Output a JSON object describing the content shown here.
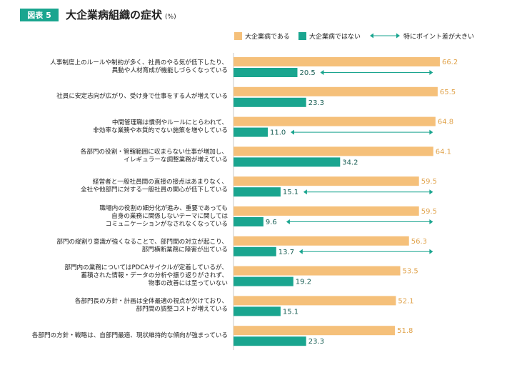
{
  "figure": {
    "badge": "図表 5",
    "title": "大企業病組織の症状",
    "unit": "(%)"
  },
  "legend": {
    "series_a": "大企業病である",
    "series_b": "大企業病ではない",
    "gap_label": "特にポイント差が大きい"
  },
  "colors": {
    "series_a": "#f5c07a",
    "series_b": "#1aa58f",
    "badge": "#1aa58f",
    "arrow": "#1aa58f"
  },
  "chart_data": {
    "type": "bar",
    "orientation": "horizontal",
    "unit": "%",
    "xlim": [
      0,
      70
    ],
    "grid": false,
    "legend_position": "top-right",
    "categories": [
      "人事制度上のルールや制約が多く、社員のやる気が低下したり、\n異動や人材育成が機能しづらくなっている",
      "社員に安定志向が広がり、受け身で仕事をする人が増えている",
      "中間管理職は慣例やルールにとらわれて、\n非効率な業務や本質的でない施策を増やしている",
      "各部門の役割・管轄範囲に収まらない仕事が増加し、\nイレギュラーな調整業務が増えている",
      "経営者と一般社員間の直接の接点はあまりなく、\n全社や他部門に対する一般社員の関心が低下している",
      "職場内の役割の細分化が進み、重要であっても\n自身の業務に関係しないテーマに関しては\nコミュニケーションがなされなくなっている",
      "部門の縦割り意識が強くなることで、部門間の対立が起こり、\n部門横断業務に障害が出ている",
      "部門内の業務についてはPDCAサイクルが定着しているが、\n蓄積された情報・データの分析や振り返りがされず、\n物事の改善には至っていない",
      "各部門長の方針・計画は全体最適の視点が欠けており、\n部門間の調整コストが増えている",
      "各部門の方針・戦略は、自部門最適、現状維持的な傾向が強まっている"
    ],
    "series": [
      {
        "name": "大企業病である",
        "values": [
          66.2,
          65.5,
          64.8,
          64.1,
          59.5,
          59.5,
          56.3,
          53.5,
          52.1,
          51.8
        ]
      },
      {
        "name": "大企業病ではない",
        "values": [
          20.5,
          23.3,
          11.0,
          34.2,
          15.1,
          9.6,
          13.7,
          19.2,
          15.1,
          23.3
        ]
      }
    ],
    "value_labels_a": [
      "66.2",
      "65.5",
      "64.8",
      "64.1",
      "59.5",
      "59.5",
      "56.3",
      "53.5",
      "52.1",
      "51.8"
    ],
    "value_labels_b": [
      "20.5",
      "23.3",
      "11.0",
      "34.2",
      "15.1",
      "9.6",
      "13.7",
      "19.2",
      "15.1",
      "23.3"
    ],
    "large_gap": [
      true,
      false,
      true,
      false,
      true,
      true,
      true,
      false,
      false,
      false
    ]
  }
}
